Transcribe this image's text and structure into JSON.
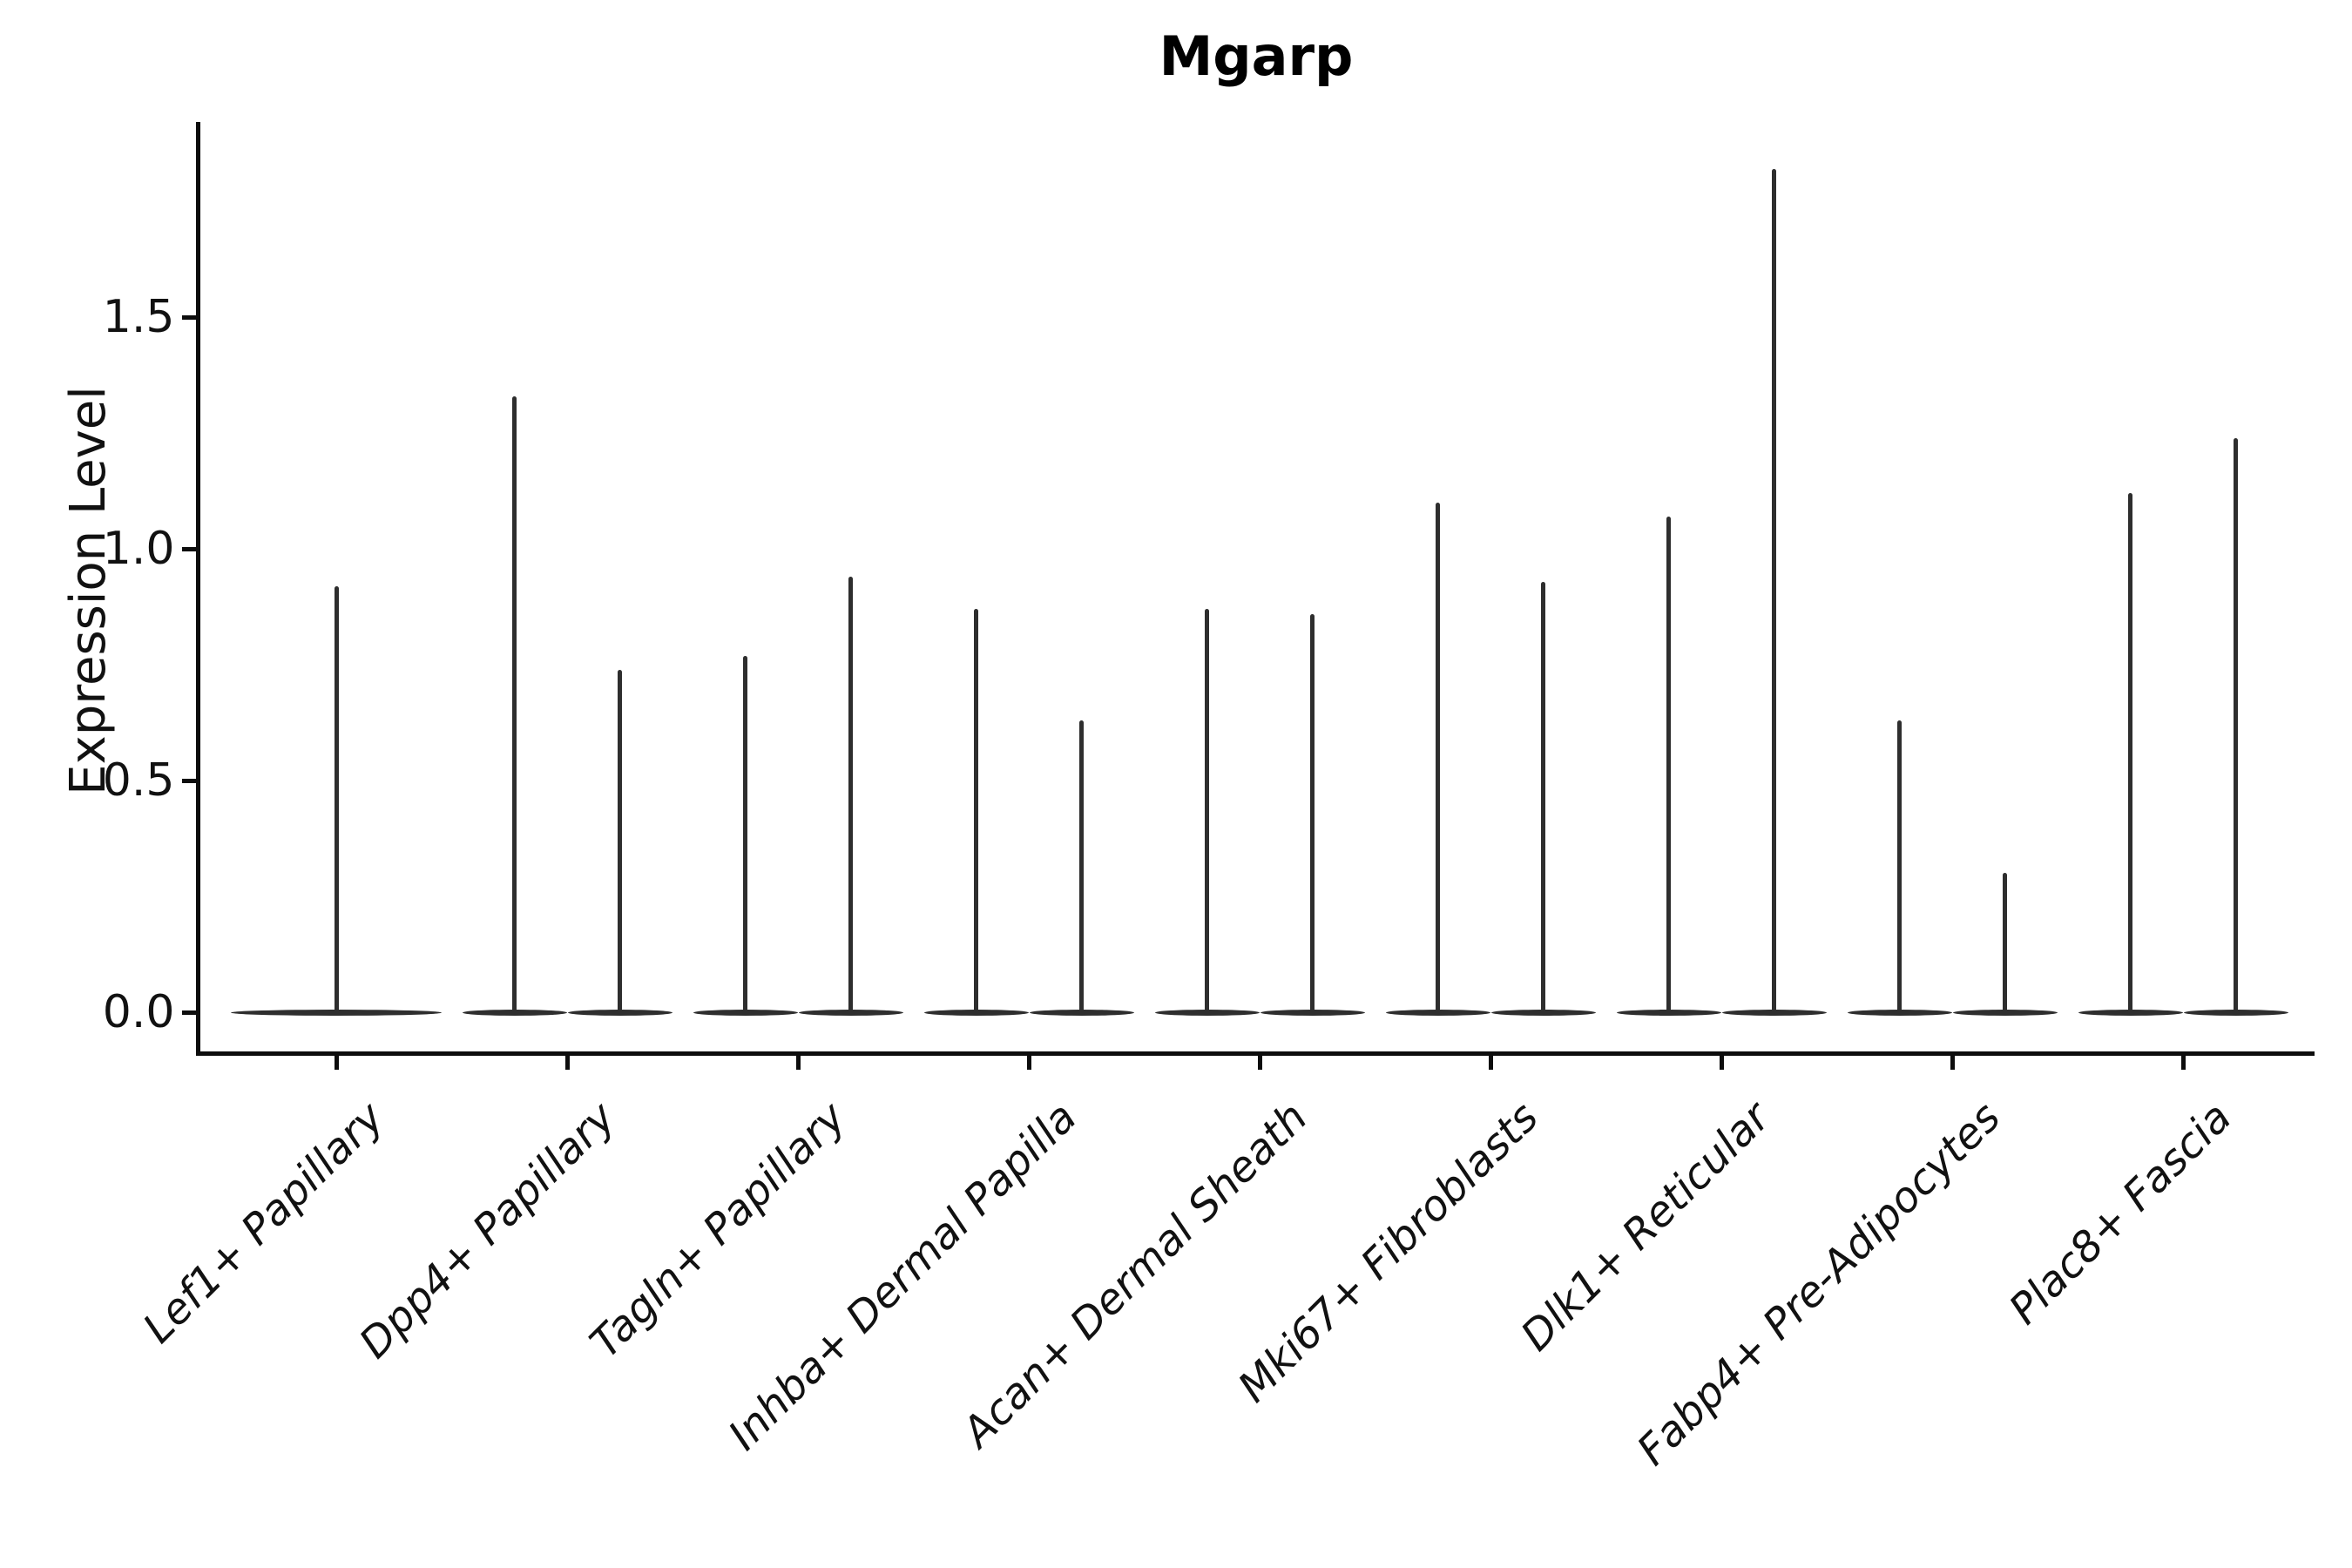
{
  "title": "Mgarp",
  "axes": {
    "ylabel": "Expression Level",
    "ytick_labels": [
      "0.0",
      "0.5",
      "1.0",
      "1.5"
    ]
  },
  "chart_data": {
    "type": "violin",
    "title": "Mgarp",
    "xlabel": "",
    "ylabel": "Expression Level",
    "ylim": [
      0,
      1.92
    ],
    "ytick_values": [
      0.0,
      0.5,
      1.0,
      1.5
    ],
    "grid": false,
    "legend": "none",
    "background": "#ffffff",
    "violin_color": "#2e2e2e",
    "categories": [
      "Lef1+ Papillary",
      "Dpp4+ Papillary",
      "Tagln+ Papillary",
      "Inhba+ Dermal Papilla",
      "Acan+ Dermal Sheath",
      "Mki67+ Fibroblasts",
      "Dlk1+ Reticular",
      "Fabp4+ Pre-Adipocytes",
      "Plac8+ Fascia"
    ],
    "violins_per_category_note": "Each category shows narrow spike-shaped violins flattened at expression 0; first category has one violin, all others have two side-by-side violins. Values below are the peak (maximum) expression level of each spike, left to right.",
    "violin_peaks": [
      [
        0.92
      ],
      [
        1.33,
        0.74
      ],
      [
        0.77,
        0.94
      ],
      [
        0.87,
        0.63
      ],
      [
        0.87,
        0.86
      ],
      [
        1.1,
        0.93
      ],
      [
        1.07,
        1.82
      ],
      [
        0.63,
        0.3
      ],
      [
        1.12,
        1.24
      ]
    ]
  }
}
